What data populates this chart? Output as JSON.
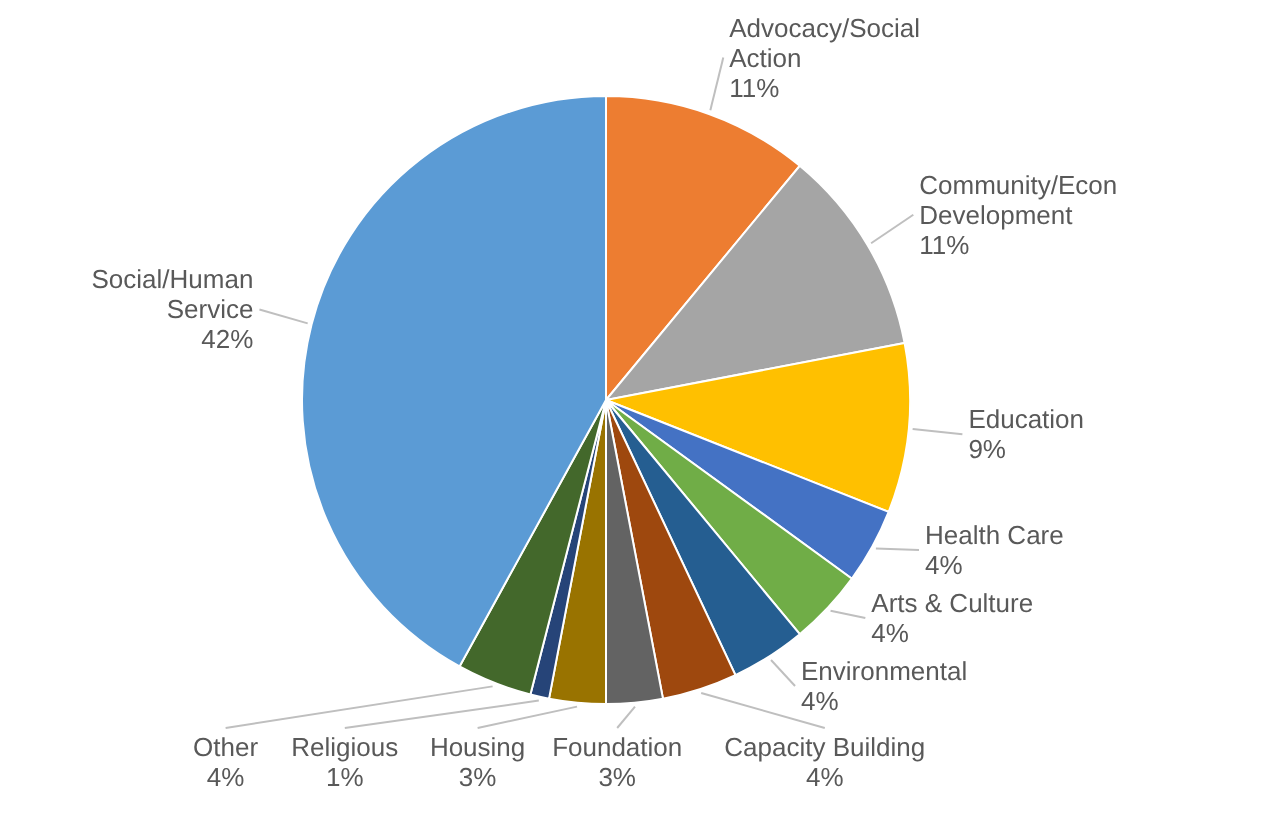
{
  "chart_data": {
    "type": "pie",
    "categories": [
      "Advocacy/Social Action",
      "Community/Econ Development",
      "Education",
      "Health Care",
      "Arts & Culture",
      "Environmental",
      "Capacity Building",
      "Foundation",
      "Housing",
      "Religious",
      "Other",
      "Social/Human Service"
    ],
    "values": [
      11,
      11,
      9,
      4,
      4,
      4,
      4,
      3,
      3,
      1,
      4,
      42
    ],
    "colors": [
      "#ed7d31",
      "#a5a5a5",
      "#ffc000",
      "#4472c4",
      "#70ad47",
      "#255e91",
      "#9e480e",
      "#636363",
      "#997300",
      "#264478",
      "#43682b",
      "#5b9bd5"
    ],
    "value_labels": [
      "11%",
      "11%",
      "9%",
      "4%",
      "4%",
      "4%",
      "4%",
      "3%",
      "3%",
      "1%",
      "4%",
      "42%"
    ]
  }
}
